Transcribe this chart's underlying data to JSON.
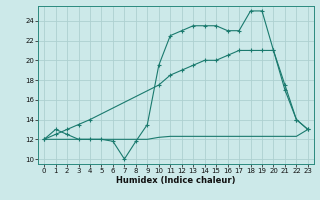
{
  "title": "",
  "xlabel": "Humidex (Indice chaleur)",
  "ylabel": "",
  "bg_color": "#cce9e9",
  "line_color": "#1a7a6e",
  "grid_color": "#aed0d0",
  "xlim": [
    -0.5,
    23.5
  ],
  "ylim": [
    9.5,
    25.5
  ],
  "xticks": [
    0,
    1,
    2,
    3,
    4,
    5,
    6,
    7,
    8,
    9,
    10,
    11,
    12,
    13,
    14,
    15,
    16,
    17,
    18,
    19,
    20,
    21,
    22,
    23
  ],
  "yticks": [
    10,
    12,
    14,
    16,
    18,
    20,
    22,
    24
  ],
  "series1_x": [
    0,
    1,
    2,
    3,
    4,
    5,
    6,
    7,
    8,
    9,
    10,
    11,
    12,
    13,
    14,
    15,
    16,
    17,
    18,
    19,
    20,
    21,
    22,
    23
  ],
  "series1_y": [
    12,
    13,
    12.5,
    12,
    12,
    12,
    11.8,
    10,
    11.8,
    13.5,
    19.5,
    22.5,
    23,
    23.5,
    23.5,
    23.5,
    23,
    23,
    25,
    25,
    21,
    17.5,
    14,
    13
  ],
  "series2_x": [
    0,
    1,
    2,
    3,
    4,
    5,
    6,
    7,
    8,
    9,
    10,
    11,
    12,
    13,
    14,
    15,
    16,
    17,
    18,
    19,
    20,
    21,
    22,
    23
  ],
  "series2_y": [
    12,
    12,
    12,
    12,
    12,
    12,
    12,
    12,
    12,
    12,
    12.2,
    12.3,
    12.3,
    12.3,
    12.3,
    12.3,
    12.3,
    12.3,
    12.3,
    12.3,
    12.3,
    12.3,
    12.3,
    13
  ],
  "series3_x": [
    0,
    1,
    2,
    3,
    4,
    10,
    11,
    12,
    13,
    14,
    15,
    16,
    17,
    18,
    19,
    20,
    21,
    22,
    23
  ],
  "series3_y": [
    12,
    12.5,
    13,
    13.5,
    14,
    17.5,
    18.5,
    19,
    19.5,
    20,
    20,
    20.5,
    21,
    21,
    21,
    21,
    17,
    14,
    13
  ]
}
